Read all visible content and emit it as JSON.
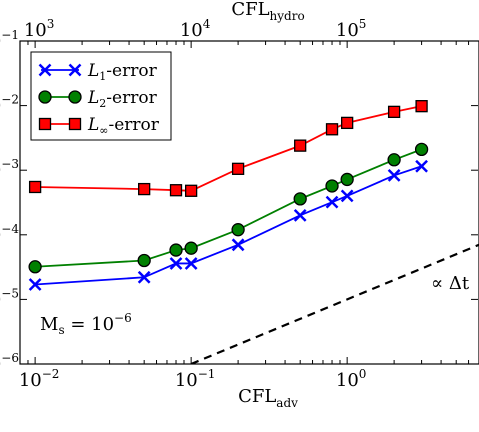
{
  "chart_data": {
    "type": "line",
    "xscale": "log",
    "yscale": "log",
    "xlabel": {
      "base": "CFL",
      "sub": "adv"
    },
    "top_xlabel": {
      "base": "CFL",
      "sub": "hydro"
    },
    "xlim": [
      0.008,
      7
    ],
    "ylim": [
      1e-06,
      0.1
    ],
    "top_xlim": [
      800,
      700000
    ],
    "x_ticks": [
      {
        "value": 0.01,
        "base": "10",
        "exp": "−2"
      },
      {
        "value": 0.1,
        "base": "10",
        "exp": "−1"
      },
      {
        "value": 1,
        "base": "10",
        "exp": "0"
      }
    ],
    "top_x_ticks": [
      {
        "value": 1000,
        "base": "10",
        "exp": "3"
      },
      {
        "value": 10000,
        "base": "10",
        "exp": "4"
      },
      {
        "value": 100000,
        "base": "10",
        "exp": "5"
      }
    ],
    "y_ticks": [
      {
        "value": 1e-06,
        "base": "10",
        "exp": "−6"
      },
      {
        "value": 1e-05,
        "base": "10",
        "exp": "−5"
      },
      {
        "value": 0.0001,
        "base": "10",
        "exp": "−4"
      },
      {
        "value": 0.001,
        "base": "10",
        "exp": "−3"
      },
      {
        "value": 0.01,
        "base": "10",
        "exp": "−2"
      },
      {
        "value": 0.1,
        "base": "10",
        "exp": "−1"
      }
    ],
    "x": [
      0.01,
      0.05,
      0.08,
      0.1,
      0.2,
      0.5,
      0.8,
      1.0,
      2.0,
      3.0
    ],
    "series": [
      {
        "name": "L1-error",
        "label_main": "L",
        "label_sub": "1",
        "label_rest": "-error",
        "color": "#0000ff",
        "marker": "x",
        "values": [
          1.7e-05,
          2.2e-05,
          3.6e-05,
          3.6e-05,
          7e-05,
          0.0002,
          0.00032,
          0.0004,
          0.00083,
          0.00115
        ]
      },
      {
        "name": "L2-error",
        "label_main": "L",
        "label_sub": "2",
        "label_rest": "-error",
        "color": "#008000",
        "marker": "circle",
        "values": [
          3.2e-05,
          4e-05,
          5.8e-05,
          6.2e-05,
          0.00012,
          0.00036,
          0.00057,
          0.00072,
          0.00145,
          0.0021
        ]
      },
      {
        "name": "L∞-error",
        "label_main": "L",
        "label_sub": "∞",
        "label_rest": "-error",
        "color": "#ff0000",
        "marker": "square",
        "values": [
          0.00055,
          0.00051,
          0.00049,
          0.00048,
          0.00105,
          0.0024,
          0.0043,
          0.0054,
          0.008,
          0.0098
        ]
      }
    ],
    "reference_line": {
      "label": "∝ Δt",
      "points": [
        [
          0.1,
          1e-06
        ],
        [
          7,
          7e-05
        ]
      ],
      "style": "dashed",
      "color": "#000000"
    },
    "annotation": {
      "text_main": "M",
      "text_sub": "s",
      "text_eq": " = 10",
      "text_exp": "−6"
    },
    "legend_position": "top-left",
    "grid": false
  }
}
